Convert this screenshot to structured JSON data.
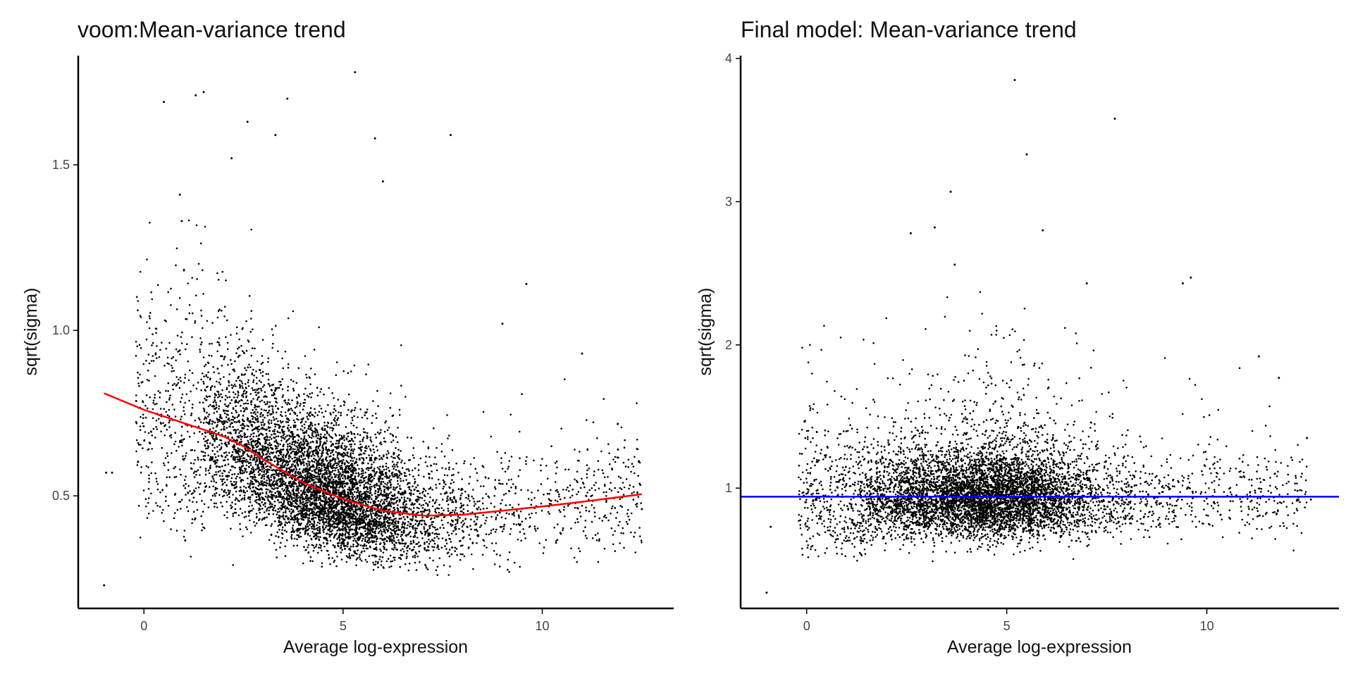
{
  "chart_data": [
    {
      "type": "scatter",
      "title": "voom:Mean-variance trend",
      "xlabel": "Average log-expression",
      "ylabel": "sqrt(sigma)",
      "xlim": [
        -1.65,
        13.3
      ],
      "ylim": [
        0.16,
        1.83
      ],
      "xticks": [
        0,
        5,
        10
      ],
      "yticks": [
        0.5,
        1.0,
        1.5
      ],
      "ytick_labels": [
        "0.5",
        "1.0",
        "1.5"
      ],
      "grid": false,
      "point_color": "#000000",
      "trend": {
        "name": "",
        "color": "#ff0000",
        "x": [
          -1.0,
          0.0,
          1.0,
          2.0,
          2.5,
          3.0,
          4.0,
          5.0,
          6.0,
          7.0,
          8.0,
          9.0,
          10.0,
          11.0,
          12.5
        ],
        "y": [
          0.81,
          0.76,
          0.72,
          0.68,
          0.65,
          0.61,
          0.54,
          0.49,
          0.455,
          0.44,
          0.443,
          0.455,
          0.468,
          0.482,
          0.505
        ]
      },
      "outliers": {
        "x": [
          -1.0,
          -0.95,
          -0.8,
          0.5,
          1.5,
          1.3,
          3.6,
          5.3,
          7.7,
          2.6,
          3.3,
          5.8,
          6.0,
          2.2,
          11.0,
          11.9,
          12.5,
          9.6,
          9.0,
          0.9,
          0.95
        ],
        "y": [
          0.23,
          0.57,
          0.57,
          1.69,
          1.72,
          1.71,
          1.7,
          1.78,
          1.59,
          1.63,
          1.59,
          1.58,
          1.45,
          1.52,
          0.93,
          0.64,
          0.46,
          1.14,
          1.02,
          1.41,
          1.33
        ]
      }
    },
    {
      "type": "scatter",
      "title": "Final model: Mean-variance trend",
      "xlabel": "Average log-expression",
      "ylabel": "sqrt(sigma)",
      "xlim": [
        -1.65,
        13.3
      ],
      "ylim": [
        0.16,
        4.02
      ],
      "xticks": [
        0,
        5,
        10
      ],
      "yticks": [
        1,
        2,
        3,
        4
      ],
      "ytick_labels": [
        "1",
        "2",
        "3",
        "4"
      ],
      "grid": false,
      "point_color": "#000000",
      "trend": {
        "name": "",
        "color": "#0000ff",
        "x": [
          -1.65,
          13.3
        ],
        "y": [
          0.94,
          0.94
        ]
      },
      "outliers": {
        "x": [
          -1.0,
          -0.9,
          5.2,
          7.7,
          5.5,
          3.6,
          5.9,
          2.6,
          3.2,
          7.0,
          9.6,
          9.4,
          12.5,
          12.6,
          11.3,
          11.8,
          3.7
        ],
        "y": [
          0.27,
          0.73,
          3.85,
          3.58,
          3.33,
          3.07,
          2.8,
          2.78,
          2.82,
          2.43,
          2.47,
          2.43,
          1.35,
          0.92,
          1.92,
          1.77,
          2.56
        ]
      }
    }
  ]
}
